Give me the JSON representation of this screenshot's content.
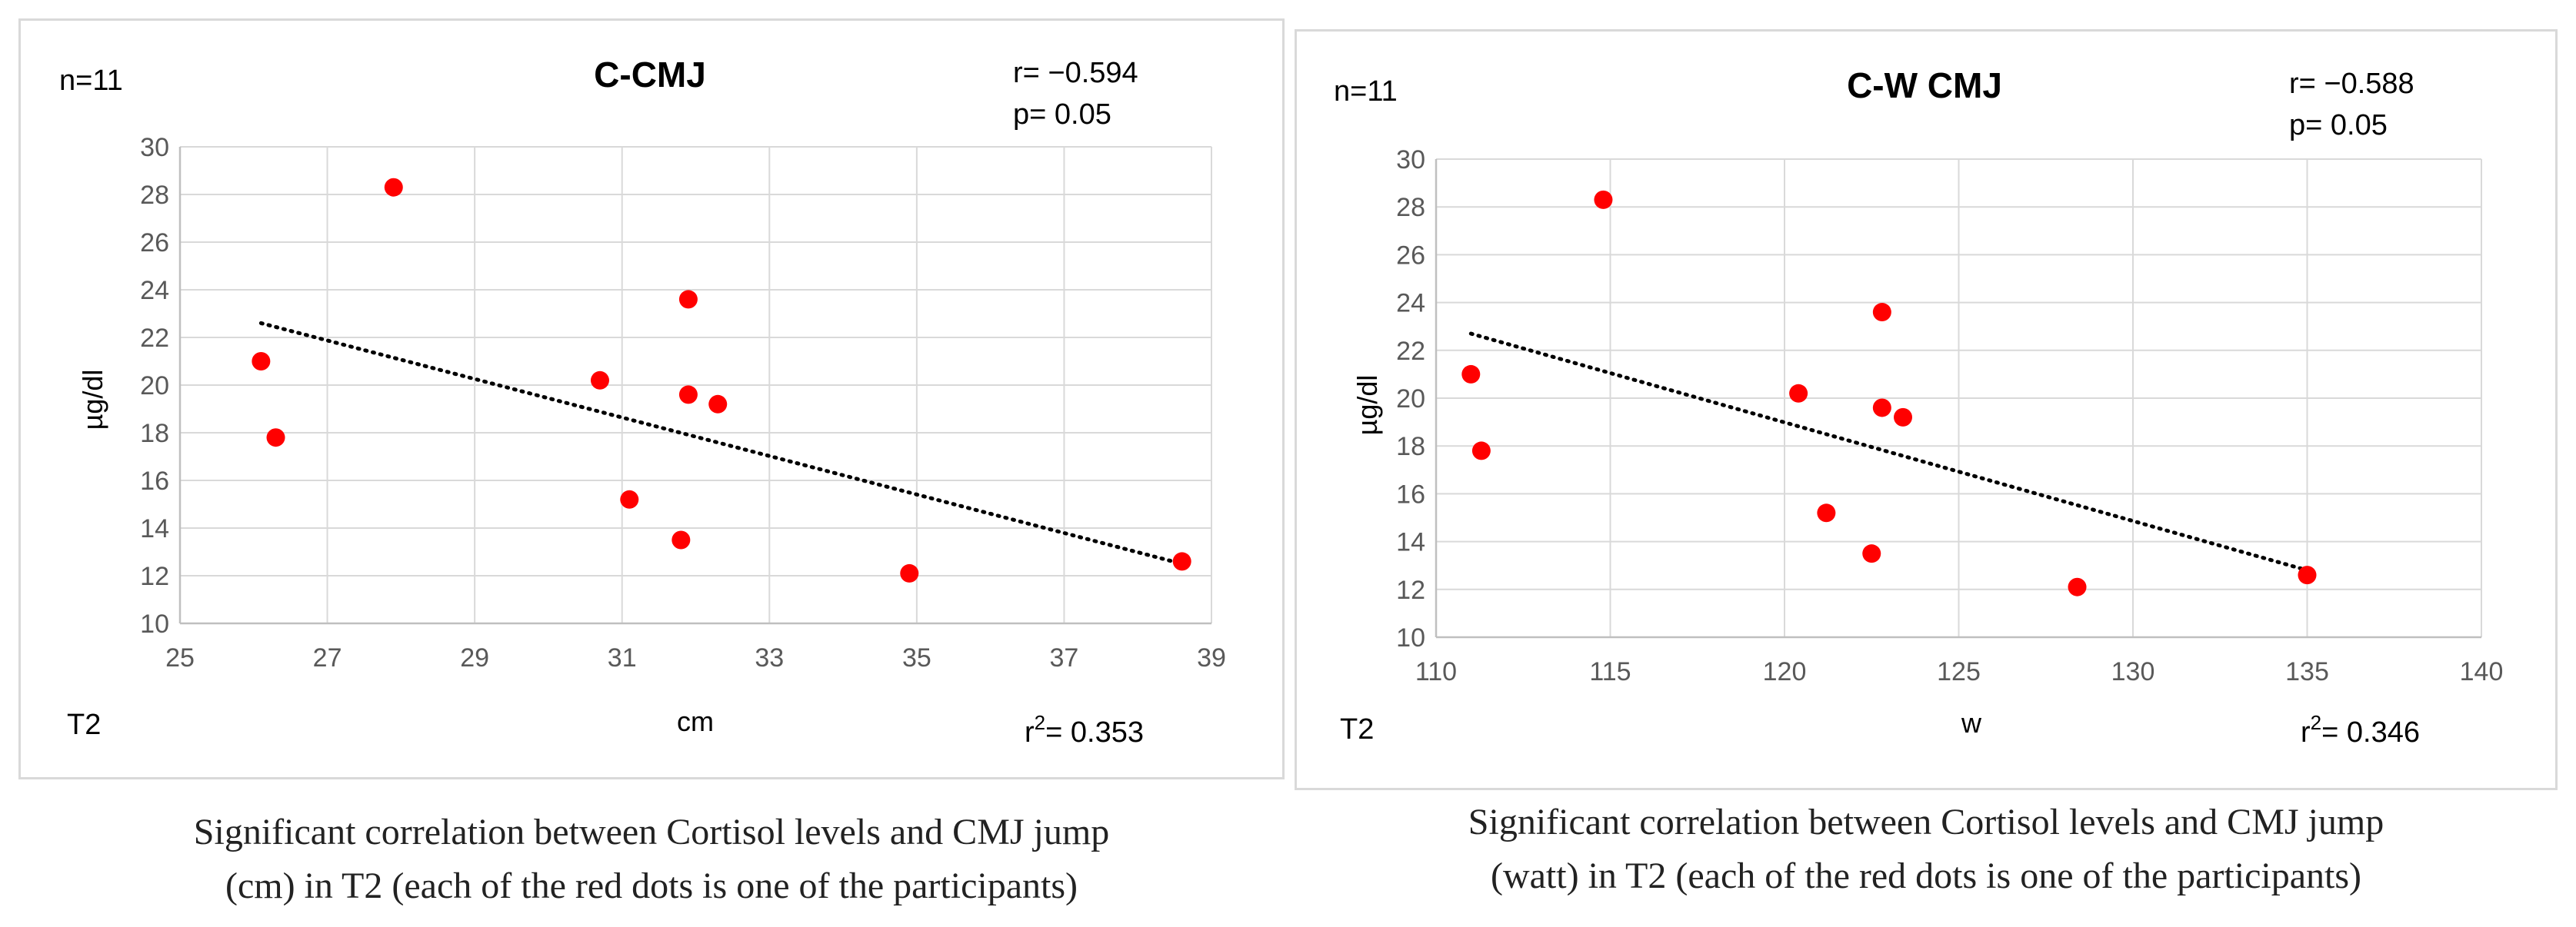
{
  "chart_data": [
    {
      "type": "scatter",
      "title": "C-CMJ",
      "xlabel": "cm",
      "ylabel": "µg/dl",
      "xlim": [
        25,
        39
      ],
      "ylim": [
        10,
        30
      ],
      "xticks": [
        "25",
        "27",
        "29",
        "31",
        "33",
        "35",
        "37",
        "39"
      ],
      "yticks": [
        "10",
        "12",
        "14",
        "16",
        "18",
        "20",
        "22",
        "24",
        "26",
        "28",
        "30"
      ],
      "grid": true,
      "points_color": "#ff0000",
      "trendline_color": "#000000",
      "points": [
        {
          "x": 26.1,
          "y": 21.0
        },
        {
          "x": 26.3,
          "y": 17.8
        },
        {
          "x": 27.9,
          "y": 28.3
        },
        {
          "x": 30.7,
          "y": 20.2
        },
        {
          "x": 31.1,
          "y": 15.2
        },
        {
          "x": 31.8,
          "y": 13.5
        },
        {
          "x": 31.9,
          "y": 19.6
        },
        {
          "x": 31.9,
          "y": 23.6
        },
        {
          "x": 32.3,
          "y": 19.2
        },
        {
          "x": 34.9,
          "y": 12.1
        },
        {
          "x": 38.6,
          "y": 12.6
        }
      ],
      "trendline": {
        "x1": 26.1,
        "y1": 22.6,
        "x2": 38.6,
        "y2": 12.5
      },
      "annotations": {
        "n": "n=11",
        "r": "r= −0.594",
        "p": "p= 0.05",
        "time": "T2",
        "r2_base": "r",
        "r2_sup": "2",
        "r2_value": "= 0.353"
      }
    },
    {
      "type": "scatter",
      "title": "C-W CMJ",
      "xlabel": "w",
      "ylabel": "µg/dl",
      "xlim": [
        110,
        140
      ],
      "ylim": [
        10,
        30
      ],
      "xticks": [
        "110",
        "115",
        "120",
        "125",
        "130",
        "135",
        "140"
      ],
      "yticks": [
        "10",
        "12",
        "14",
        "16",
        "18",
        "20",
        "22",
        "24",
        "26",
        "28",
        "30"
      ],
      "grid": true,
      "points_color": "#ff0000",
      "trendline_color": "#000000",
      "points": [
        {
          "x": 111.0,
          "y": 21.0
        },
        {
          "x": 111.3,
          "y": 17.8
        },
        {
          "x": 114.8,
          "y": 28.3
        },
        {
          "x": 120.4,
          "y": 20.2
        },
        {
          "x": 121.2,
          "y": 15.2
        },
        {
          "x": 122.5,
          "y": 13.5
        },
        {
          "x": 122.8,
          "y": 19.6
        },
        {
          "x": 122.8,
          "y": 23.6
        },
        {
          "x": 123.4,
          "y": 19.2
        },
        {
          "x": 128.4,
          "y": 12.1
        },
        {
          "x": 135.0,
          "y": 12.6
        }
      ],
      "trendline": {
        "x1": 111.0,
        "y1": 22.7,
        "x2": 135.0,
        "y2": 12.8
      },
      "annotations": {
        "n": "n=11",
        "r": "r= −0.588",
        "p": "p= 0.05",
        "time": "T2",
        "r2_base": "r",
        "r2_sup": "2",
        "r2_value": "= 0.346"
      }
    }
  ],
  "captions": [
    {
      "line1": "Significant correlation between Cortisol levels and CMJ jump",
      "line2": "(cm) in T2 (each of the red dots is one of the participants)"
    },
    {
      "line1": "Significant correlation between Cortisol levels and CMJ jump",
      "line2": "(watt) in T2 (each of the red dots is one of the participants)"
    }
  ]
}
